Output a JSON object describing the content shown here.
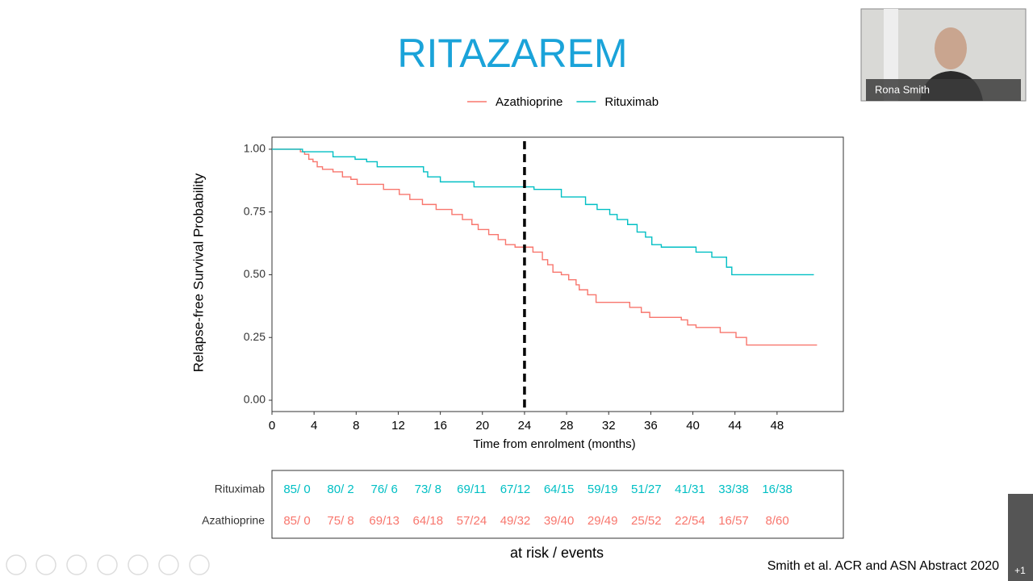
{
  "chart_data": {
    "type": "line",
    "step": true,
    "title": "RITAZAREM",
    "xlabel": "Time from enrolment (months)",
    "ylabel": "Relapse-free Survival Probability",
    "xlim": [
      0,
      54.3
    ],
    "ylim": [
      -0.045,
      1.048
    ],
    "xticks": [
      0,
      4,
      8,
      12,
      16,
      20,
      24,
      28,
      32,
      36,
      40,
      44,
      48
    ],
    "yticks": [
      {
        "value": 0,
        "label": "0.00"
      },
      {
        "value": 0.25,
        "label": "0.25"
      },
      {
        "value": 0.5,
        "label": "0.50"
      },
      {
        "value": 0.75,
        "label": "0.75"
      },
      {
        "value": 1,
        "label": "1.00"
      }
    ],
    "vline": 24,
    "series": [
      {
        "name": "Azathioprine",
        "color": "#F8766D",
        "x": [
          0,
          2.7,
          3.1,
          3.5,
          3.9,
          4.3,
          4.8,
          5.8,
          6.7,
          7.5,
          8.1,
          10.6,
          12.1,
          13.1,
          14.3,
          15.6,
          17.1,
          18.1,
          19.0,
          19.6,
          20.6,
          21.5,
          22.2,
          23.1,
          24.8,
          25.7,
          26.2,
          26.7,
          27.5,
          28.2,
          28.9,
          29.2,
          30.0,
          30.8,
          34.0,
          35.1,
          35.9,
          38.9,
          39.5,
          40.3,
          42.6,
          44.1,
          45.1,
          51.8
        ],
        "values": [
          1.0,
          0.99,
          0.98,
          0.96,
          0.95,
          0.93,
          0.92,
          0.91,
          0.89,
          0.88,
          0.86,
          0.84,
          0.82,
          0.8,
          0.78,
          0.76,
          0.74,
          0.72,
          0.7,
          0.68,
          0.66,
          0.64,
          0.62,
          0.61,
          0.59,
          0.56,
          0.54,
          0.51,
          0.5,
          0.48,
          0.46,
          0.44,
          0.42,
          0.39,
          0.37,
          0.35,
          0.33,
          0.32,
          0.3,
          0.29,
          0.27,
          0.25,
          0.22,
          0.22
        ]
      },
      {
        "name": "Rituximab",
        "color": "#00BFC4",
        "x": [
          0,
          2.9,
          5.8,
          7.9,
          9.0,
          10.0,
          14.4,
          14.8,
          16.0,
          19.2,
          24.9,
          27.5,
          29.8,
          30.9,
          32.1,
          32.8,
          33.8,
          34.7,
          35.5,
          36.1,
          37.0,
          40.3,
          41.8,
          43.2,
          43.7,
          51.5
        ],
        "values": [
          1.0,
          0.99,
          0.97,
          0.96,
          0.95,
          0.93,
          0.91,
          0.89,
          0.87,
          0.85,
          0.84,
          0.81,
          0.78,
          0.76,
          0.74,
          0.72,
          0.7,
          0.67,
          0.65,
          0.62,
          0.61,
          0.59,
          0.57,
          0.53,
          0.5,
          0.5
        ]
      }
    ],
    "risk_table": {
      "caption": "at risk / events",
      "rows": [
        {
          "name": "Rituximab",
          "color": "#00BFC4",
          "cells": [
            "85/ 0",
            "80/ 2",
            "76/ 6",
            "73/ 8",
            "69/11",
            "67/12",
            "64/15",
            "59/19",
            "51/27",
            "41/31",
            "33/38",
            "16/38"
          ]
        },
        {
          "name": "Azathioprine",
          "color": "#F8766D",
          "cells": [
            "85/ 0",
            "75/ 8",
            "69/13",
            "64/18",
            "57/24",
            "49/32",
            "39/40",
            "29/49",
            "25/52",
            "22/54",
            "16/57",
            "8/60"
          ]
        }
      ]
    }
  },
  "citation": "Smith et al.  ACR and ASN Abstract 2020",
  "video": {
    "name": "Rona Smith",
    "badge": "+1"
  }
}
